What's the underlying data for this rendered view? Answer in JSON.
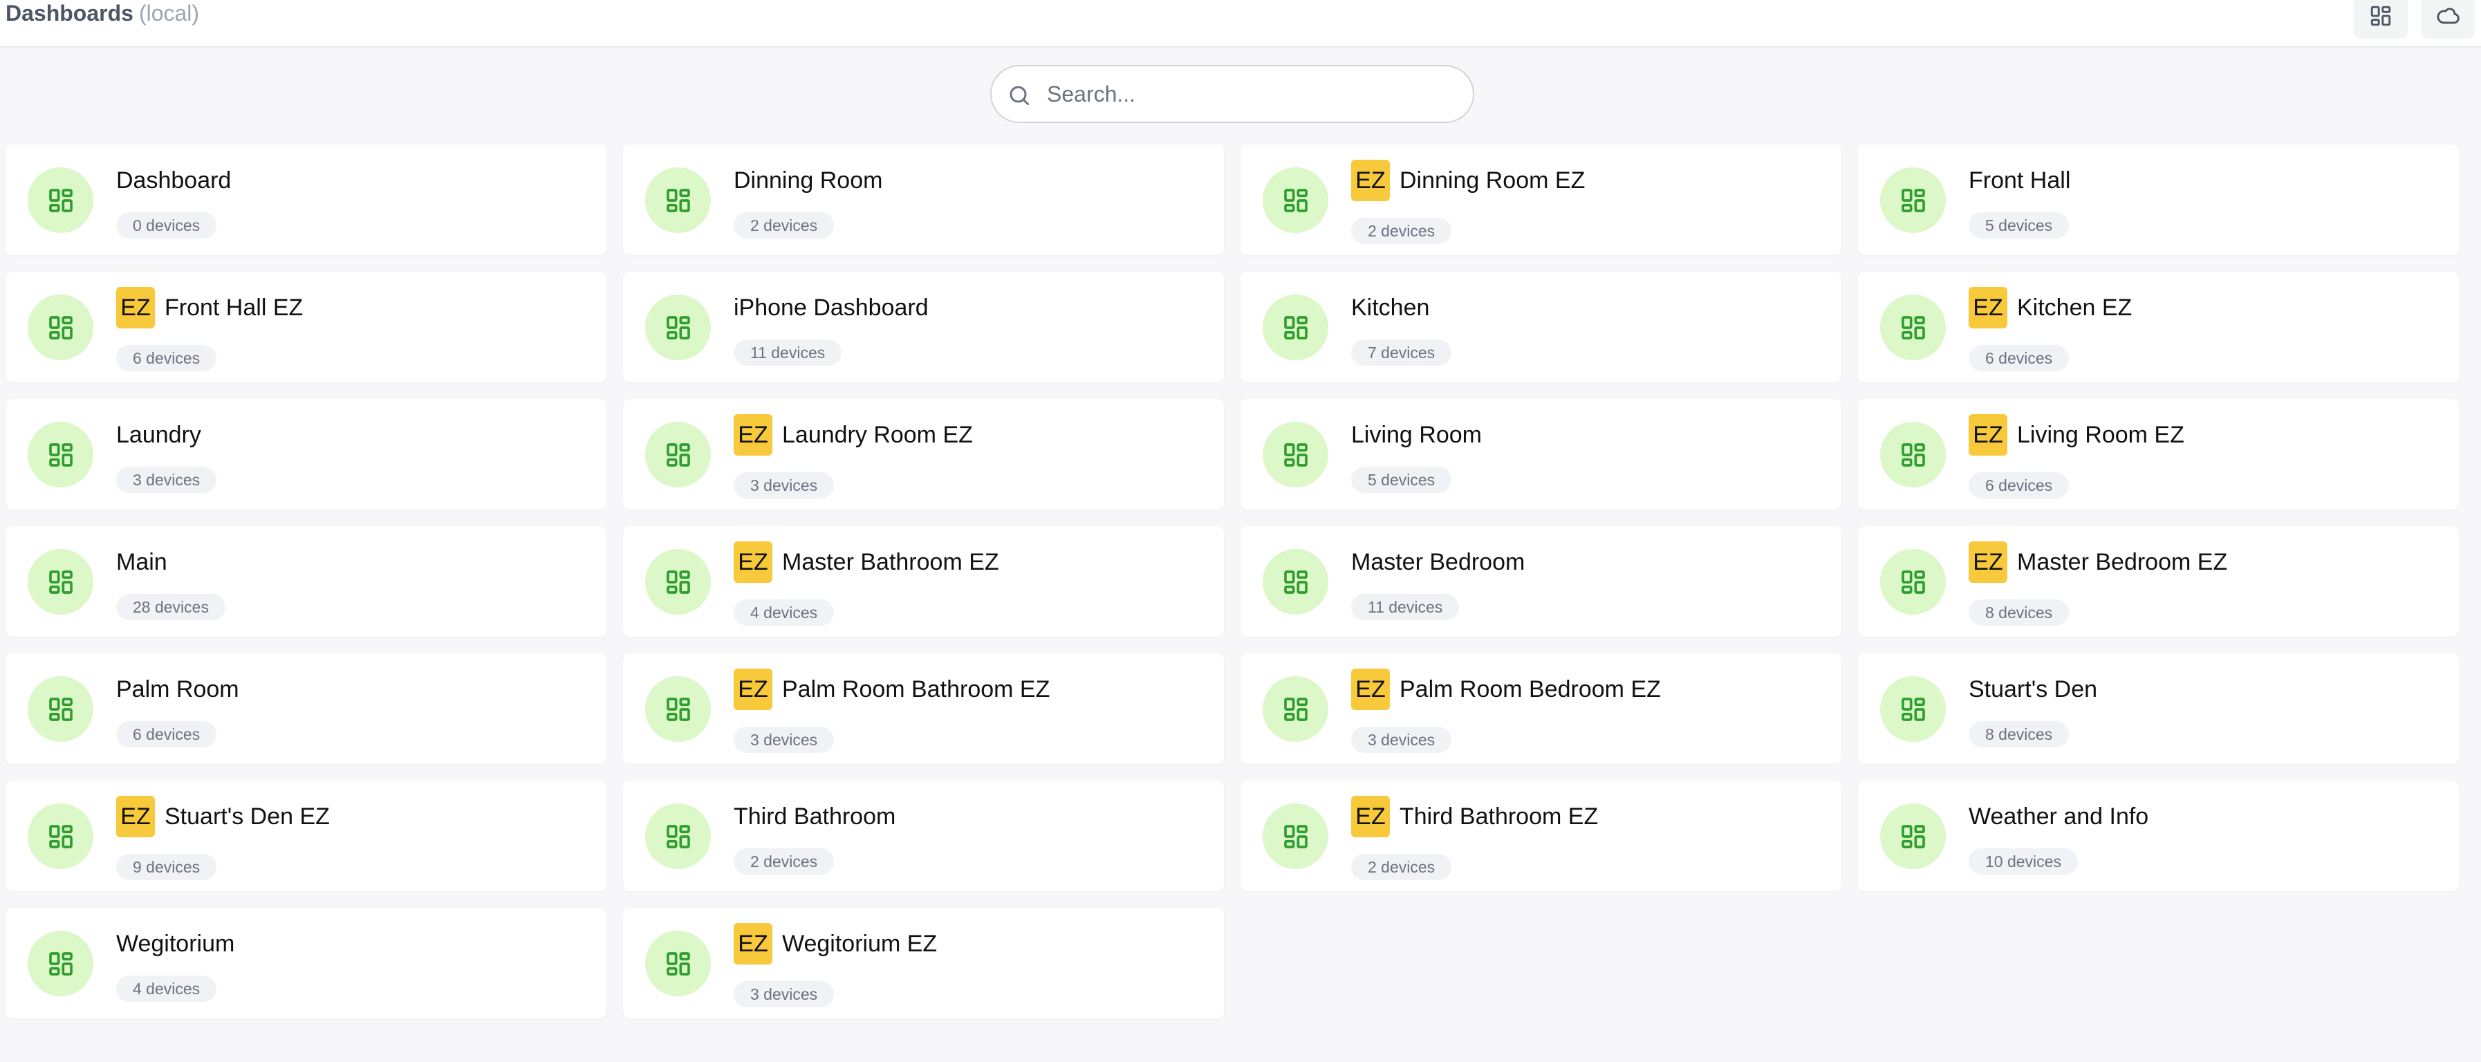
{
  "header": {
    "title": "Dashboards",
    "subtitle": "(local)",
    "grid_button_icon": "grid-icon",
    "cloud_button_icon": "cloud-icon"
  },
  "search": {
    "placeholder": "Search...",
    "value": ""
  },
  "colors": {
    "accent_green": "#2f9e2f",
    "avatar_bg": "#dcf7c8",
    "ez_badge": "#f8c93a"
  },
  "dashboards": [
    {
      "name": "Dashboard",
      "devices": "0 devices",
      "ez": false
    },
    {
      "name": "Dinning Room",
      "devices": "2 devices",
      "ez": false
    },
    {
      "name": "Dinning Room EZ",
      "devices": "2 devices",
      "ez": true
    },
    {
      "name": "Front Hall",
      "devices": "5 devices",
      "ez": false
    },
    {
      "name": "Front Hall EZ",
      "devices": "6 devices",
      "ez": true
    },
    {
      "name": "iPhone Dashboard",
      "devices": "11 devices",
      "ez": false
    },
    {
      "name": "Kitchen",
      "devices": "7 devices",
      "ez": false
    },
    {
      "name": "Kitchen EZ",
      "devices": "6 devices",
      "ez": true
    },
    {
      "name": "Laundry",
      "devices": "3 devices",
      "ez": false
    },
    {
      "name": "Laundry Room EZ",
      "devices": "3 devices",
      "ez": true
    },
    {
      "name": "Living Room",
      "devices": "5 devices",
      "ez": false
    },
    {
      "name": "Living Room EZ",
      "devices": "6 devices",
      "ez": true
    },
    {
      "name": "Main",
      "devices": "28 devices",
      "ez": false
    },
    {
      "name": "Master Bathroom EZ",
      "devices": "4 devices",
      "ez": true
    },
    {
      "name": "Master Bedroom",
      "devices": "11 devices",
      "ez": false
    },
    {
      "name": "Master Bedroom EZ",
      "devices": "8 devices",
      "ez": true
    },
    {
      "name": "Palm Room",
      "devices": "6 devices",
      "ez": false
    },
    {
      "name": "Palm Room Bathroom EZ",
      "devices": "3 devices",
      "ez": true
    },
    {
      "name": "Palm Room Bedroom EZ",
      "devices": "3 devices",
      "ez": true
    },
    {
      "name": "Stuart's Den",
      "devices": "8 devices",
      "ez": false
    },
    {
      "name": "Stuart's Den EZ",
      "devices": "9 devices",
      "ez": true
    },
    {
      "name": "Third Bathroom",
      "devices": "2 devices",
      "ez": false
    },
    {
      "name": "Third Bathroom EZ",
      "devices": "2 devices",
      "ez": true
    },
    {
      "name": "Weather and Info",
      "devices": "10 devices",
      "ez": false
    },
    {
      "name": "Wegitorium",
      "devices": "4 devices",
      "ez": false
    },
    {
      "name": "Wegitorium EZ",
      "devices": "3 devices",
      "ez": true
    }
  ],
  "ez_label": "EZ"
}
